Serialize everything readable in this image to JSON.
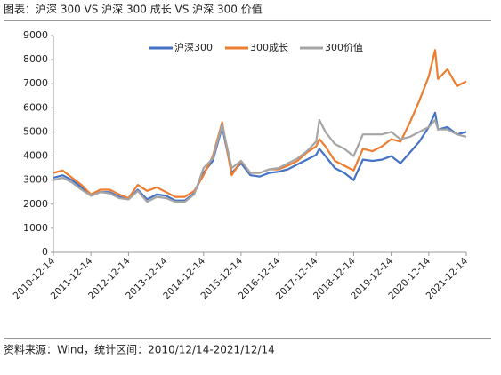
{
  "chart_data": {
    "type": "line",
    "title": "图表：沪深 300 VS 沪深 300 成长 VS 沪深 300 价值",
    "source": "资料来源：Wind，统计区间：2010/12/14-2021/12/14",
    "x": [
      "2010-12-14",
      "2011-03-14",
      "2011-06-14",
      "2011-09-14",
      "2011-12-14",
      "2012-03-14",
      "2012-06-14",
      "2012-09-14",
      "2012-12-14",
      "2013-03-14",
      "2013-06-14",
      "2013-09-14",
      "2013-12-14",
      "2014-03-14",
      "2014-06-14",
      "2014-09-14",
      "2014-12-14",
      "2015-03-14",
      "2015-06-14",
      "2015-09-14",
      "2015-12-14",
      "2016-03-14",
      "2016-06-14",
      "2016-09-14",
      "2016-12-14",
      "2017-03-14",
      "2017-06-14",
      "2017-09-14",
      "2017-12-14",
      "2018-01-14",
      "2018-03-14",
      "2018-06-14",
      "2018-09-14",
      "2018-12-14",
      "2019-03-14",
      "2019-06-14",
      "2019-09-14",
      "2019-12-14",
      "2020-03-14",
      "2020-06-14",
      "2020-09-14",
      "2020-12-14",
      "2021-02-14",
      "2021-03-14",
      "2021-06-14",
      "2021-09-14",
      "2021-12-14"
    ],
    "series": [
      {
        "name": "沪深300",
        "color": "#4472c4",
        "values": [
          3100,
          3200,
          3000,
          2700,
          2350,
          2500,
          2500,
          2300,
          2200,
          2600,
          2200,
          2400,
          2350,
          2150,
          2150,
          2450,
          3300,
          3800,
          5200,
          3300,
          3700,
          3200,
          3150,
          3300,
          3350,
          3450,
          3650,
          3850,
          4050,
          4300,
          4000,
          3500,
          3300,
          3000,
          3850,
          3800,
          3850,
          4000,
          3700,
          4150,
          4600,
          5200,
          5800,
          5100,
          5200,
          4900,
          5000
        ]
      },
      {
        "name": "300成长",
        "color": "#ed7d31",
        "values": [
          3300,
          3400,
          3100,
          2800,
          2400,
          2600,
          2600,
          2400,
          2250,
          2800,
          2550,
          2700,
          2500,
          2300,
          2300,
          2550,
          3200,
          4000,
          5400,
          3200,
          3800,
          3300,
          3300,
          3450,
          3450,
          3600,
          3800,
          4150,
          4400,
          4700,
          4400,
          3800,
          3600,
          3400,
          4300,
          4200,
          4400,
          4700,
          4600,
          5400,
          6300,
          7300,
          8400,
          7200,
          7600,
          6900,
          7100
        ]
      },
      {
        "name": "300价值",
        "color": "#a5a5a5",
        "values": [
          3000,
          3100,
          2900,
          2600,
          2350,
          2500,
          2450,
          2250,
          2200,
          2550,
          2100,
          2300,
          2250,
          2100,
          2100,
          2400,
          3500,
          3900,
          5300,
          3500,
          3800,
          3300,
          3300,
          3450,
          3500,
          3700,
          3900,
          4200,
          4600,
          5500,
          5000,
          4500,
          4300,
          4000,
          4900,
          4900,
          4900,
          5000,
          4700,
          4800,
          5000,
          5200,
          5500,
          5100,
          5100,
          4900,
          4800
        ]
      }
    ],
    "xlim": [
      "2010-12-14",
      "2021-12-14"
    ],
    "xticks": [
      "2010-12-14",
      "2011-12-14",
      "2012-12-14",
      "2013-12-14",
      "2014-12-14",
      "2015-12-14",
      "2016-12-14",
      "2017-12-14",
      "2018-12-14",
      "2019-12-14",
      "2020-12-14",
      "2021-12-14"
    ],
    "ylim": [
      0,
      9000
    ],
    "yticks": [
      0,
      1000,
      2000,
      3000,
      4000,
      5000,
      6000,
      7000,
      8000,
      9000
    ],
    "legend": "top"
  }
}
